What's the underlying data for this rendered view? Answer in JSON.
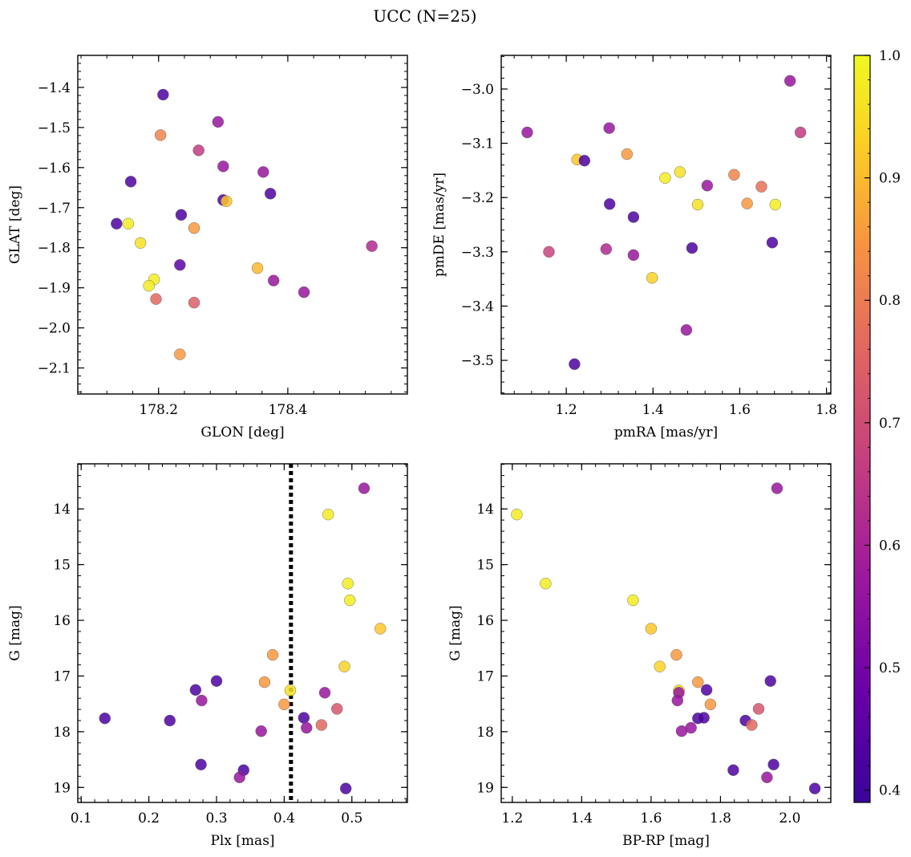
{
  "title": "UCC (N=25)",
  "chart_data": [
    {
      "type": "scatter",
      "xlabel": "GLON [deg]",
      "ylabel": "GLAT [deg]",
      "xlim": [
        178.075,
        178.585
      ],
      "ylim": [
        -2.165,
        -1.32
      ],
      "xticks": [
        178.2,
        178.4
      ],
      "yticks": [
        -1.4,
        -1.5,
        -1.6,
        -1.7,
        -1.8,
        -1.9,
        -2.0,
        -2.1
      ],
      "x_tick_labels": [
        "178.2",
        "178.4"
      ],
      "y_tick_labels": [
        "−1.4",
        "−1.5",
        "−1.6",
        "−1.7",
        "−1.8",
        "−1.9",
        "−2.0",
        "−2.1"
      ],
      "points": [
        {
          "x": 178.207,
          "y": -1.418,
          "p": 0.42
        },
        {
          "x": 178.203,
          "y": -1.519,
          "p": 0.8
        },
        {
          "x": 178.292,
          "y": -1.486,
          "p": 0.55
        },
        {
          "x": 178.262,
          "y": -1.557,
          "p": 0.64
        },
        {
          "x": 178.157,
          "y": -1.635,
          "p": 0.42
        },
        {
          "x": 178.3,
          "y": -1.597,
          "p": 0.55
        },
        {
          "x": 178.362,
          "y": -1.611,
          "p": 0.55
        },
        {
          "x": 178.373,
          "y": -1.665,
          "p": 0.42
        },
        {
          "x": 178.3,
          "y": -1.681,
          "p": 0.42
        },
        {
          "x": 178.305,
          "y": -1.684,
          "p": 0.92
        },
        {
          "x": 178.235,
          "y": -1.718,
          "p": 0.42
        },
        {
          "x": 178.135,
          "y": -1.74,
          "p": 0.42
        },
        {
          "x": 178.153,
          "y": -1.74,
          "p": 0.98
        },
        {
          "x": 178.255,
          "y": -1.751,
          "p": 0.84
        },
        {
          "x": 178.172,
          "y": -1.788,
          "p": 0.96
        },
        {
          "x": 178.53,
          "y": -1.796,
          "p": 0.6
        },
        {
          "x": 178.233,
          "y": -1.843,
          "p": 0.45
        },
        {
          "x": 178.353,
          "y": -1.851,
          "p": 0.9
        },
        {
          "x": 178.378,
          "y": -1.882,
          "p": 0.55
        },
        {
          "x": 178.193,
          "y": -1.879,
          "p": 0.98
        },
        {
          "x": 178.185,
          "y": -1.895,
          "p": 0.98
        },
        {
          "x": 178.425,
          "y": -1.911,
          "p": 0.55
        },
        {
          "x": 178.196,
          "y": -1.928,
          "p": 0.74
        },
        {
          "x": 178.255,
          "y": -1.937,
          "p": 0.72
        },
        {
          "x": 178.233,
          "y": -2.066,
          "p": 0.84
        }
      ]
    },
    {
      "type": "scatter",
      "xlabel": "pmRA [mas/yr]",
      "ylabel": "pmDE [mas/yr]",
      "xlim": [
        1.05,
        1.81
      ],
      "ylim": [
        -3.562,
        -2.938
      ],
      "xticks": [
        1.2,
        1.4,
        1.6,
        1.8
      ],
      "yticks": [
        -3.0,
        -3.1,
        -3.2,
        -3.3,
        -3.4,
        -3.5
      ],
      "x_tick_labels": [
        "1.2",
        "1.4",
        "1.6",
        "1.8"
      ],
      "y_tick_labels": [
        "−3.0",
        "−3.1",
        "−3.2",
        "−3.3",
        "−3.4",
        "−3.5"
      ],
      "points": [
        {
          "x": 1.716,
          "y": -2.985,
          "p": 0.55
        },
        {
          "x": 1.11,
          "y": -3.08,
          "p": 0.55
        },
        {
          "x": 1.299,
          "y": -3.072,
          "p": 0.55
        },
        {
          "x": 1.74,
          "y": -3.08,
          "p": 0.64
        },
        {
          "x": 1.34,
          "y": -3.12,
          "p": 0.84
        },
        {
          "x": 1.225,
          "y": -3.13,
          "p": 0.92
        },
        {
          "x": 1.242,
          "y": -3.132,
          "p": 0.42
        },
        {
          "x": 1.462,
          "y": -3.153,
          "p": 0.96
        },
        {
          "x": 1.428,
          "y": -3.164,
          "p": 0.98
        },
        {
          "x": 1.587,
          "y": -3.158,
          "p": 0.8
        },
        {
          "x": 1.525,
          "y": -3.178,
          "p": 0.55
        },
        {
          "x": 1.65,
          "y": -3.18,
          "p": 0.76
        },
        {
          "x": 1.3,
          "y": -3.212,
          "p": 0.42
        },
        {
          "x": 1.503,
          "y": -3.213,
          "p": 0.96
        },
        {
          "x": 1.617,
          "y": -3.211,
          "p": 0.84
        },
        {
          "x": 1.682,
          "y": -3.213,
          "p": 0.98
        },
        {
          "x": 1.355,
          "y": -3.236,
          "p": 0.42
        },
        {
          "x": 1.675,
          "y": -3.283,
          "p": 0.42
        },
        {
          "x": 1.16,
          "y": -3.3,
          "p": 0.66
        },
        {
          "x": 1.292,
          "y": -3.295,
          "p": 0.6
        },
        {
          "x": 1.49,
          "y": -3.293,
          "p": 0.42
        },
        {
          "x": 1.355,
          "y": -3.306,
          "p": 0.55
        },
        {
          "x": 1.398,
          "y": -3.348,
          "p": 0.94
        },
        {
          "x": 1.477,
          "y": -3.444,
          "p": 0.55
        },
        {
          "x": 1.219,
          "y": -3.507,
          "p": 0.42
        }
      ]
    },
    {
      "type": "scatter",
      "xlabel": "Plx [mas]",
      "ylabel": "G [mag]",
      "y_inverted": true,
      "xlim": [
        0.095,
        0.582
      ],
      "ylim": [
        19.27,
        13.19
      ],
      "xticks": [
        0.1,
        0.2,
        0.3,
        0.4,
        0.5
      ],
      "yticks": [
        14,
        15,
        16,
        17,
        18,
        19
      ],
      "x_tick_labels": [
        "0.1",
        "0.2",
        "0.3",
        "0.4",
        "0.5"
      ],
      "y_tick_labels": [
        "14",
        "15",
        "16",
        "17",
        "18",
        "19"
      ],
      "vline": 0.41,
      "points": [
        {
          "x": 0.518,
          "y": 13.63,
          "p": 0.55
        },
        {
          "x": 0.465,
          "y": 14.1,
          "p": 0.98
        },
        {
          "x": 0.494,
          "y": 15.34,
          "p": 0.98
        },
        {
          "x": 0.497,
          "y": 15.64,
          "p": 0.98
        },
        {
          "x": 0.542,
          "y": 16.15,
          "p": 0.92
        },
        {
          "x": 0.383,
          "y": 16.62,
          "p": 0.84
        },
        {
          "x": 0.489,
          "y": 16.83,
          "p": 0.94
        },
        {
          "x": 0.3,
          "y": 17.09,
          "p": 0.42
        },
        {
          "x": 0.371,
          "y": 17.11,
          "p": 0.84
        },
        {
          "x": 0.269,
          "y": 17.25,
          "p": 0.42
        },
        {
          "x": 0.409,
          "y": 17.26,
          "p": 0.96
        },
        {
          "x": 0.46,
          "y": 17.3,
          "p": 0.55
        },
        {
          "x": 0.278,
          "y": 17.44,
          "p": 0.55
        },
        {
          "x": 0.4,
          "y": 17.51,
          "p": 0.84
        },
        {
          "x": 0.478,
          "y": 17.59,
          "p": 0.7
        },
        {
          "x": 0.135,
          "y": 17.76,
          "p": 0.42
        },
        {
          "x": 0.429,
          "y": 17.75,
          "p": 0.42
        },
        {
          "x": 0.231,
          "y": 17.8,
          "p": 0.42
        },
        {
          "x": 0.455,
          "y": 17.88,
          "p": 0.74
        },
        {
          "x": 0.433,
          "y": 17.93,
          "p": 0.55
        },
        {
          "x": 0.366,
          "y": 17.99,
          "p": 0.55
        },
        {
          "x": 0.277,
          "y": 18.59,
          "p": 0.42
        },
        {
          "x": 0.34,
          "y": 18.69,
          "p": 0.42
        },
        {
          "x": 0.334,
          "y": 18.82,
          "p": 0.55
        },
        {
          "x": 0.491,
          "y": 19.02,
          "p": 0.42
        }
      ]
    },
    {
      "type": "scatter",
      "xlabel": "BP-RP [mag]",
      "ylabel": "G [mag]",
      "y_inverted": true,
      "xlim": [
        1.168,
        2.118
      ],
      "ylim": [
        19.27,
        13.19
      ],
      "xticks": [
        1.2,
        1.4,
        1.6,
        1.8,
        2.0
      ],
      "yticks": [
        14,
        15,
        16,
        17,
        18,
        19
      ],
      "x_tick_labels": [
        "1.2",
        "1.4",
        "1.6",
        "1.8",
        "2.0"
      ],
      "y_tick_labels": [
        "14",
        "15",
        "16",
        "17",
        "18",
        "19"
      ],
      "points": [
        {
          "x": 1.963,
          "y": 13.63,
          "p": 0.55
        },
        {
          "x": 1.213,
          "y": 14.1,
          "p": 0.98
        },
        {
          "x": 1.296,
          "y": 15.34,
          "p": 0.98
        },
        {
          "x": 1.548,
          "y": 15.64,
          "p": 0.98
        },
        {
          "x": 1.6,
          "y": 16.15,
          "p": 0.92
        },
        {
          "x": 1.673,
          "y": 16.62,
          "p": 0.84
        },
        {
          "x": 1.625,
          "y": 16.83,
          "p": 0.94
        },
        {
          "x": 1.944,
          "y": 17.09,
          "p": 0.42
        },
        {
          "x": 1.735,
          "y": 17.11,
          "p": 0.84
        },
        {
          "x": 1.76,
          "y": 17.25,
          "p": 0.42
        },
        {
          "x": 1.68,
          "y": 17.26,
          "p": 0.96
        },
        {
          "x": 1.68,
          "y": 17.3,
          "p": 0.55
        },
        {
          "x": 1.676,
          "y": 17.44,
          "p": 0.55
        },
        {
          "x": 1.771,
          "y": 17.51,
          "p": 0.84
        },
        {
          "x": 1.91,
          "y": 17.59,
          "p": 0.7
        },
        {
          "x": 1.735,
          "y": 17.76,
          "p": 0.42
        },
        {
          "x": 1.752,
          "y": 17.75,
          "p": 0.42
        },
        {
          "x": 1.872,
          "y": 17.8,
          "p": 0.42
        },
        {
          "x": 1.89,
          "y": 17.88,
          "p": 0.74
        },
        {
          "x": 1.715,
          "y": 17.93,
          "p": 0.55
        },
        {
          "x": 1.688,
          "y": 17.99,
          "p": 0.55
        },
        {
          "x": 1.953,
          "y": 18.59,
          "p": 0.42
        },
        {
          "x": 1.837,
          "y": 18.69,
          "p": 0.42
        },
        {
          "x": 1.934,
          "y": 18.82,
          "p": 0.55
        },
        {
          "x": 2.072,
          "y": 19.02,
          "p": 0.42
        }
      ]
    }
  ],
  "colorbar": {
    "colormap": "plasma",
    "range": [
      0.39,
      1.0
    ],
    "ticks": [
      0.4,
      0.5,
      0.6,
      0.7,
      0.8,
      0.9,
      1.0
    ],
    "tick_labels": [
      "0.4",
      "0.5",
      "0.6",
      "0.7",
      "0.8",
      "0.9",
      "1.0"
    ]
  }
}
